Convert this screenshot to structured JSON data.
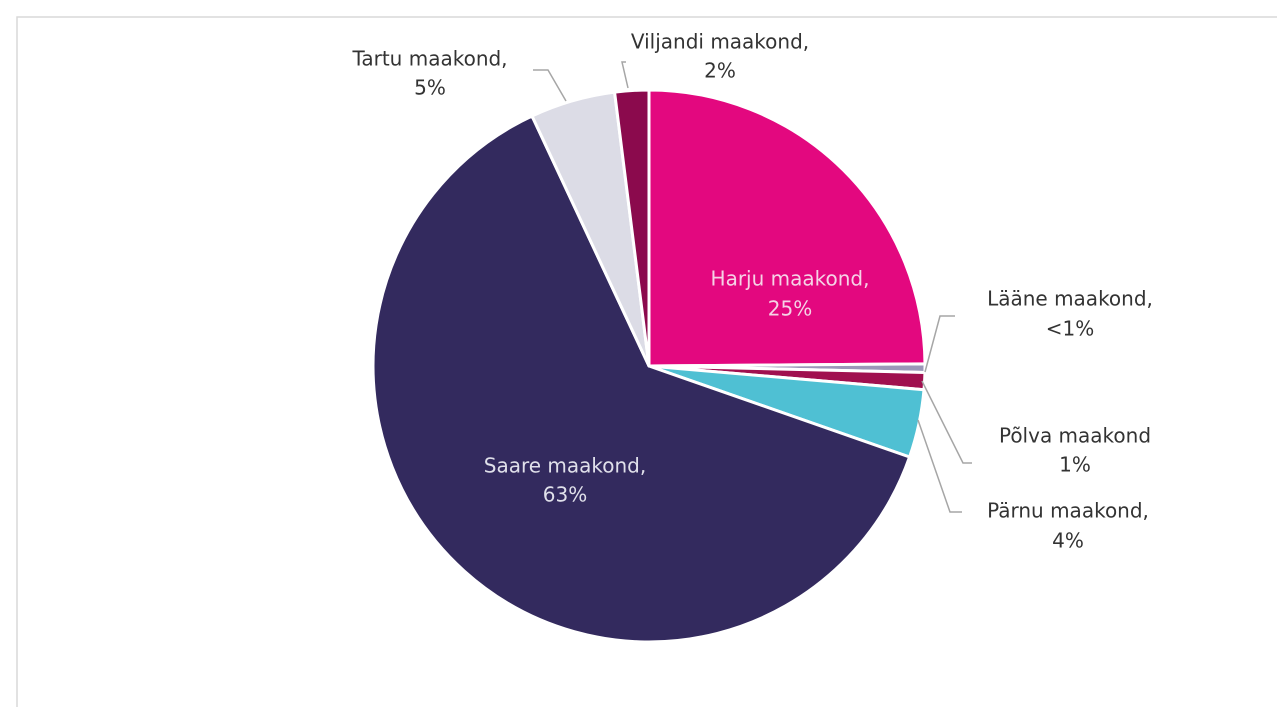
{
  "chart_data": {
    "type": "pie",
    "categories": [
      "Harju maakond,",
      "Lääne maakond,",
      "Põlva maakond",
      "Pärnu maakond,",
      "Saare maakond,",
      "Tartu maakond,",
      "Viljandi maakond,"
    ],
    "values": [
      25,
      0.5,
      1,
      4,
      63,
      5,
      2
    ],
    "value_labels": [
      "25%",
      "<1%",
      "1%",
      "4%",
      "63%",
      "5%",
      "2%"
    ],
    "colors": [
      "#e3087f",
      "#9b97b8",
      "#a0104f",
      "#4fc0d3",
      "#332a5e",
      "#dcdce6",
      "#8b0a4d"
    ]
  }
}
